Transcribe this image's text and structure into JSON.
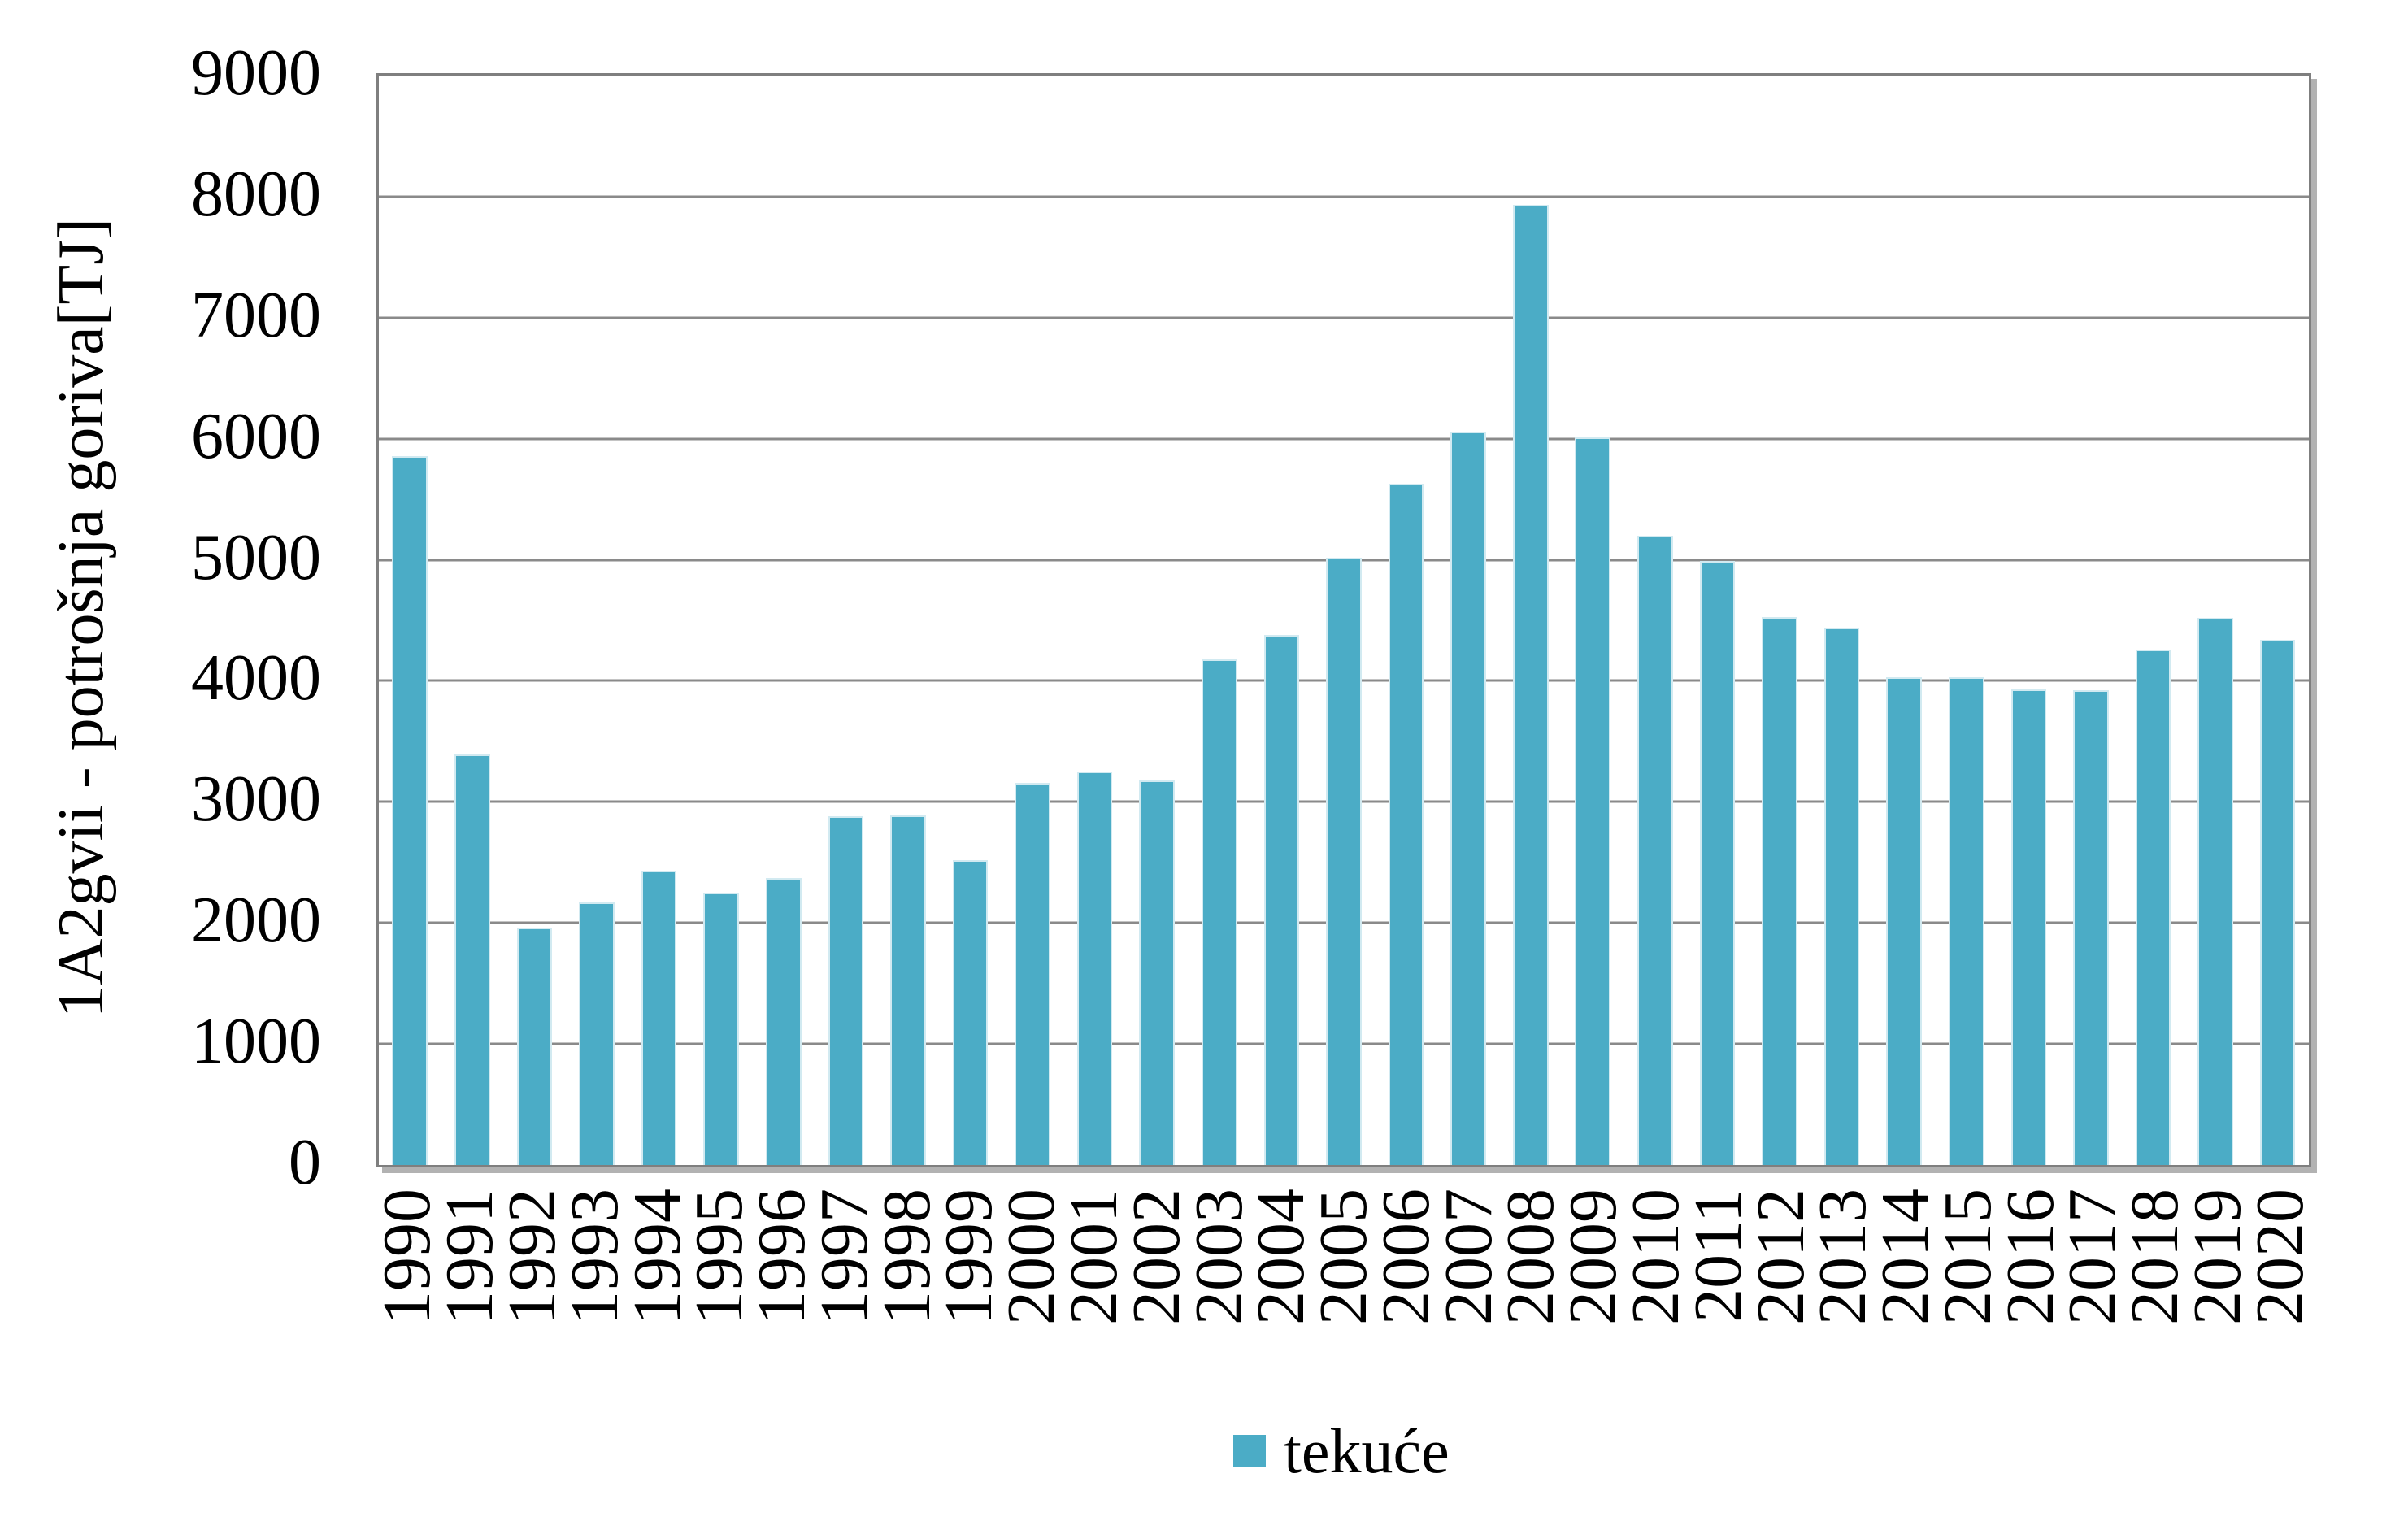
{
  "chart_data": {
    "type": "bar",
    "title": "",
    "xlabel": "",
    "ylabel": "1A2gvii  - potrošnja goriva[TJ]",
    "ylim": [
      0,
      9000
    ],
    "ytick_step": 1000,
    "y_ticks": [
      9000,
      8000,
      7000,
      6000,
      5000,
      4000,
      3000,
      2000,
      1000,
      0
    ],
    "grid": true,
    "legend_position": "bottom",
    "categories": [
      "1990",
      "1991",
      "1992",
      "1993",
      "1994",
      "1995",
      "1996",
      "1997",
      "1998",
      "1999",
      "2000",
      "2001",
      "2002",
      "2003",
      "2004",
      "2005",
      "2006",
      "2007",
      "2008",
      "2009",
      "2010",
      "2011",
      "2012",
      "2013",
      "2014",
      "2015",
      "2016",
      "2017",
      "2018",
      "2019",
      "2020"
    ],
    "series": [
      {
        "name": "tekuće",
        "color": "#4bacc6",
        "values": [
          5860,
          3390,
          1960,
          2170,
          2430,
          2250,
          2370,
          2880,
          2890,
          2520,
          3160,
          3250,
          3180,
          4180,
          4380,
          5020,
          5630,
          6060,
          7930,
          6010,
          5200,
          4990,
          4530,
          4440,
          4030,
          4030,
          3930,
          3920,
          4260,
          4520,
          4340
        ]
      }
    ],
    "colors": {
      "bar": "#4bacc6",
      "gridline": "#8a8a8a",
      "plot_border": "#7f7f7f",
      "shadow": "#b2b2b2",
      "text": "#000000"
    }
  }
}
